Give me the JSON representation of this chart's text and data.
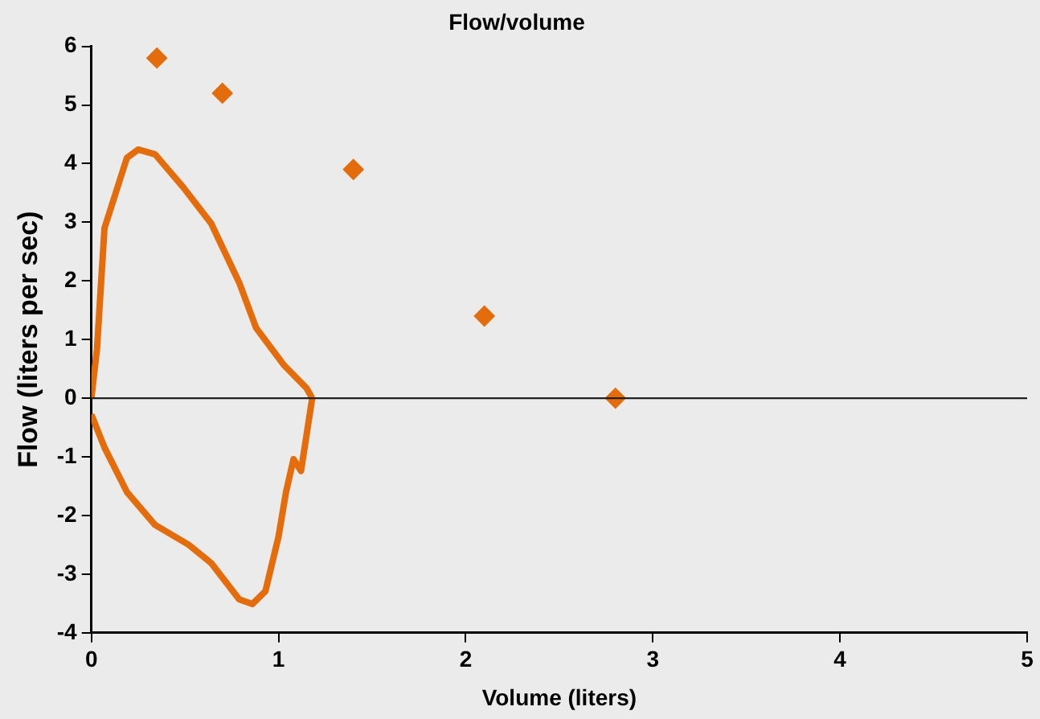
{
  "chart_data": {
    "type": "line",
    "title": "Flow/volume",
    "xlabel": "Volume (liters)",
    "ylabel": "Flow (liters per sec)",
    "xlim": [
      0,
      5
    ],
    "xticks": [
      0,
      1,
      2,
      3,
      4,
      5
    ],
    "ylim": [
      -4,
      6
    ],
    "yticks": [
      -4,
      -3,
      -2,
      -1,
      0,
      1,
      2,
      3,
      4,
      5,
      6
    ],
    "grid": false,
    "legend": false,
    "ref_lines": [
      {
        "axis": "y",
        "value": 0,
        "color": "#222222"
      }
    ],
    "series": [
      {
        "color": "#e46c0a",
        "marker": "none",
        "x": [
          0,
          0.03,
          0.07,
          0.13,
          0.19,
          0.25,
          0.34,
          0.49,
          0.64,
          0.79,
          0.88,
          1.03,
          1.15,
          1.18
        ],
        "values": [
          0,
          0.84,
          2.9,
          3.5,
          4.1,
          4.24,
          4.16,
          3.6,
          2.98,
          1.97,
          1.2,
          0.56,
          0.17,
          0
        ]
      },
      {
        "color": "#e46c0a",
        "marker": "none",
        "x": [
          0,
          0.07,
          0.19,
          0.34,
          0.52,
          0.64,
          0.79,
          0.86,
          0.93,
          1.0,
          1.04,
          1.08,
          1.12,
          1.18
        ],
        "values": [
          -0.28,
          -0.84,
          -1.6,
          -2.16,
          -2.5,
          -2.81,
          -3.43,
          -3.51,
          -3.29,
          -2.36,
          -1.6,
          -1.04,
          -1.24,
          0
        ]
      },
      {
        "type": "scatter",
        "color": "#e46c0a",
        "marker": "diamond",
        "x": [
          0.35,
          0.7,
          1.4,
          2.1,
          2.8
        ],
        "values": [
          5.8,
          5.2,
          3.9,
          1.4,
          0
        ]
      }
    ]
  }
}
